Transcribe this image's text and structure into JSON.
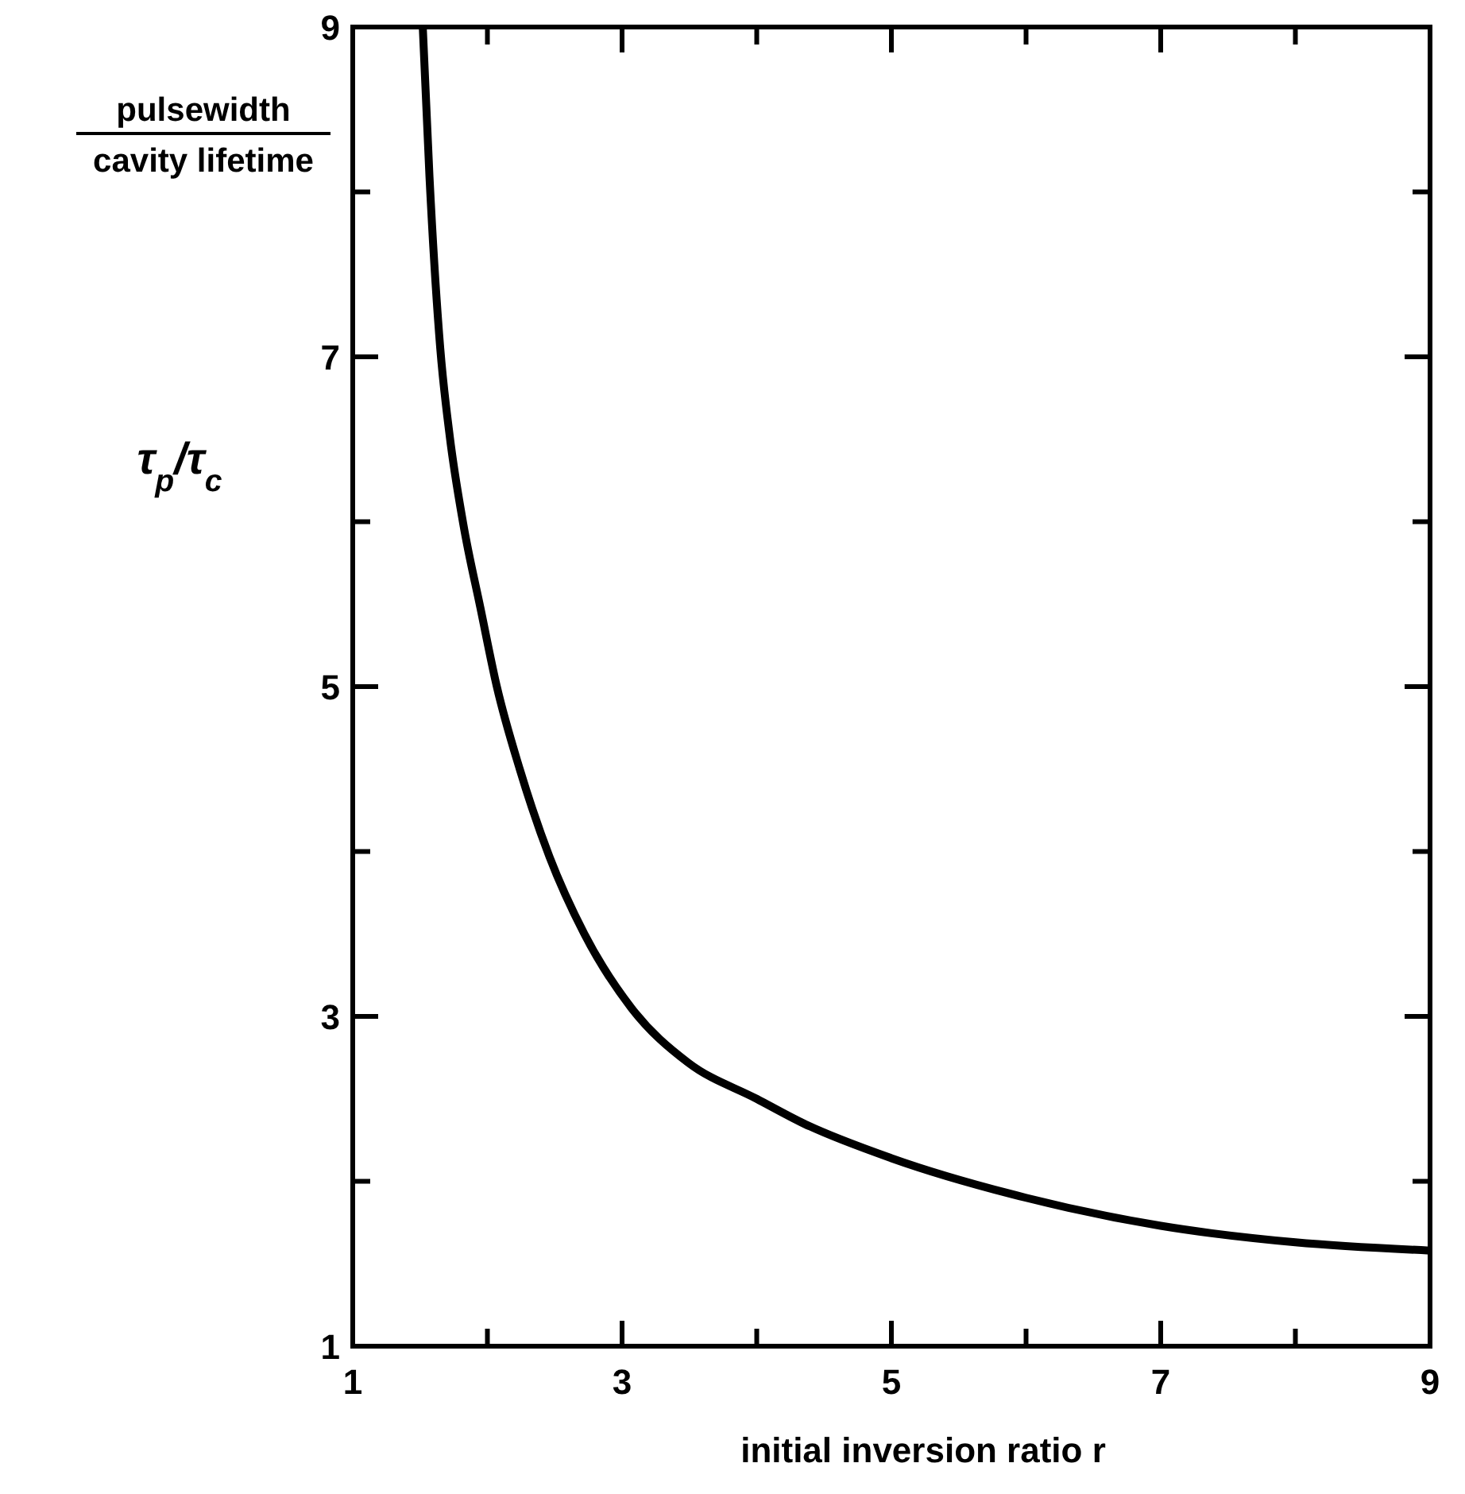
{
  "chart_data": {
    "type": "line",
    "ylabel": "pulsewidth",
    "annotations": [
      "cavity lifetime"
    ],
    "y2label": "τ$_{p}$/τ$_{c}$",
    "xlabel": "initial inversion ratio  r",
    "x": [
      1.52,
      1.57,
      1.65,
      1.72,
      1.82,
      1.95,
      2.07,
      2.24,
      2.46,
      2.72,
      3.07,
      3.49,
      4.0,
      4.35,
      5.0,
      6.0,
      7.0,
      8.0,
      9.0
    ],
    "series": [
      {
        "color": "#000000",
        "values": [
          9,
          8.09,
          7.05,
          6.52,
          5.99,
          5.47,
          5.0,
          4.5,
          3.97,
          3.5,
          3.05,
          2.72,
          2.5,
          2.35,
          2.14,
          1.9,
          1.73,
          1.63,
          1.58
        ]
      }
    ],
    "xlim": [
      1,
      9
    ],
    "ylim": [
      1,
      9
    ],
    "xticks": [
      1,
      {
        "value": 2,
        "label": null
      },
      3,
      {
        "value": 4,
        "label": null
      },
      5,
      {
        "value": 6,
        "label": null
      },
      7,
      {
        "value": 8,
        "label": null
      },
      9
    ],
    "yticks": [
      1,
      {
        "value": 2,
        "label": null
      },
      3,
      {
        "value": 4,
        "label": null
      },
      5,
      {
        "value": 6,
        "label": null
      },
      7,
      {
        "value": 8,
        "label": null
      },
      9
    ],
    "grid": false,
    "marker": "none",
    "line_style": "solid"
  }
}
